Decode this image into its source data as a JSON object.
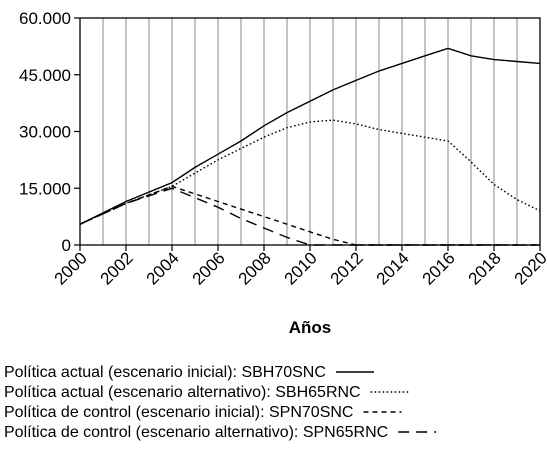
{
  "chart_data": {
    "type": "line",
    "title": "",
    "xlabel": "Años",
    "ylabel": "",
    "xlim": [
      2000,
      2020
    ],
    "ylim": [
      0,
      60000
    ],
    "grid": "vertical",
    "legend_position": "bottom",
    "y_ticks": [
      {
        "value": 0,
        "label": "0"
      },
      {
        "value": 15000,
        "label": "15.000"
      },
      {
        "value": 30000,
        "label": "30.000"
      },
      {
        "value": 45000,
        "label": "45.000"
      },
      {
        "value": 60000,
        "label": "60.000"
      }
    ],
    "x_ticks": [
      {
        "value": 2000,
        "label": "2000"
      },
      {
        "value": 2002,
        "label": "2002"
      },
      {
        "value": 2004,
        "label": "2004"
      },
      {
        "value": 2006,
        "label": "2006"
      },
      {
        "value": 2008,
        "label": "2008"
      },
      {
        "value": 2010,
        "label": "2010"
      },
      {
        "value": 2012,
        "label": "2012"
      },
      {
        "value": 2014,
        "label": "2014"
      },
      {
        "value": 2016,
        "label": "2016"
      },
      {
        "value": 2018,
        "label": "2018"
      },
      {
        "value": 2020,
        "label": "2020"
      }
    ],
    "x_minor": [
      2001,
      2003,
      2005,
      2007,
      2009,
      2011,
      2013,
      2015,
      2017,
      2019
    ],
    "series": [
      {
        "name": "Política actual (escenario inicial): SBH70SNC",
        "style": "solid",
        "color": "#000000",
        "points": [
          [
            2000,
            5500
          ],
          [
            2002,
            11500
          ],
          [
            2004,
            16500
          ],
          [
            2005,
            20500
          ],
          [
            2006,
            24000
          ],
          [
            2007,
            27500
          ],
          [
            2008,
            31500
          ],
          [
            2009,
            35000
          ],
          [
            2010,
            38000
          ],
          [
            2011,
            41000
          ],
          [
            2012,
            43500
          ],
          [
            2013,
            46000
          ],
          [
            2014,
            48000
          ],
          [
            2015,
            50000
          ],
          [
            2016,
            52000
          ],
          [
            2017,
            50000
          ],
          [
            2018,
            49000
          ],
          [
            2019,
            48500
          ],
          [
            2020,
            48000
          ]
        ]
      },
      {
        "name": "Política actual (escenario alternativo): SBH65RNC",
        "style": "dotted",
        "color": "#000000",
        "points": [
          [
            2000,
            5500
          ],
          [
            2002,
            11000
          ],
          [
            2004,
            15500
          ],
          [
            2005,
            19000
          ],
          [
            2006,
            22500
          ],
          [
            2007,
            25500
          ],
          [
            2008,
            28500
          ],
          [
            2009,
            31000
          ],
          [
            2010,
            32500
          ],
          [
            2011,
            33000
          ],
          [
            2012,
            32000
          ],
          [
            2013,
            30500
          ],
          [
            2014,
            29500
          ],
          [
            2015,
            28500
          ],
          [
            2016,
            27500
          ],
          [
            2017,
            22000
          ],
          [
            2018,
            16000
          ],
          [
            2019,
            12000
          ],
          [
            2020,
            9000
          ]
        ]
      },
      {
        "name": "Política de control (escenario inicial): SPN70SNC",
        "style": "short-dash",
        "color": "#000000",
        "points": [
          [
            2000,
            5500
          ],
          [
            2002,
            11000
          ],
          [
            2004,
            15500
          ],
          [
            2005,
            13500
          ],
          [
            2006,
            11500
          ],
          [
            2007,
            9500
          ],
          [
            2008,
            7500
          ],
          [
            2009,
            5500
          ],
          [
            2010,
            3500
          ],
          [
            2011,
            1500
          ],
          [
            2012,
            0
          ],
          [
            2013,
            0
          ],
          [
            2014,
            0
          ],
          [
            2015,
            0
          ],
          [
            2016,
            0
          ],
          [
            2017,
            0
          ],
          [
            2018,
            0
          ],
          [
            2019,
            0
          ],
          [
            2020,
            0
          ]
        ]
      },
      {
        "name": "Política de control (escenario alternativo): SPN65RNC",
        "style": "long-dash",
        "color": "#000000",
        "points": [
          [
            2000,
            5500
          ],
          [
            2002,
            11000
          ],
          [
            2004,
            15000
          ],
          [
            2005,
            12500
          ],
          [
            2006,
            10000
          ],
          [
            2007,
            7000
          ],
          [
            2008,
            4500
          ],
          [
            2009,
            2000
          ],
          [
            2010,
            0
          ],
          [
            2011,
            0
          ],
          [
            2012,
            0
          ],
          [
            2013,
            0
          ],
          [
            2014,
            0
          ],
          [
            2015,
            0
          ],
          [
            2016,
            0
          ],
          [
            2017,
            0
          ],
          [
            2018,
            0
          ],
          [
            2019,
            0
          ],
          [
            2020,
            0
          ]
        ]
      }
    ]
  }
}
